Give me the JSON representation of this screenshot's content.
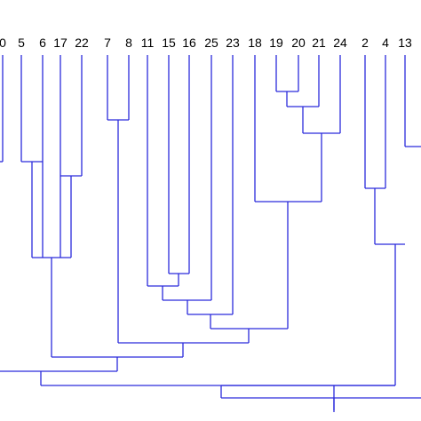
{
  "dendrogram": {
    "line_color": "#2b2bdc",
    "leaf_labels": [
      "0",
      "5",
      "6",
      "17",
      "22",
      "7",
      "8",
      "11",
      "15",
      "16",
      "25",
      "23",
      "18",
      "19",
      "20",
      "21",
      "24",
      "2",
      "4",
      "13"
    ]
  }
}
